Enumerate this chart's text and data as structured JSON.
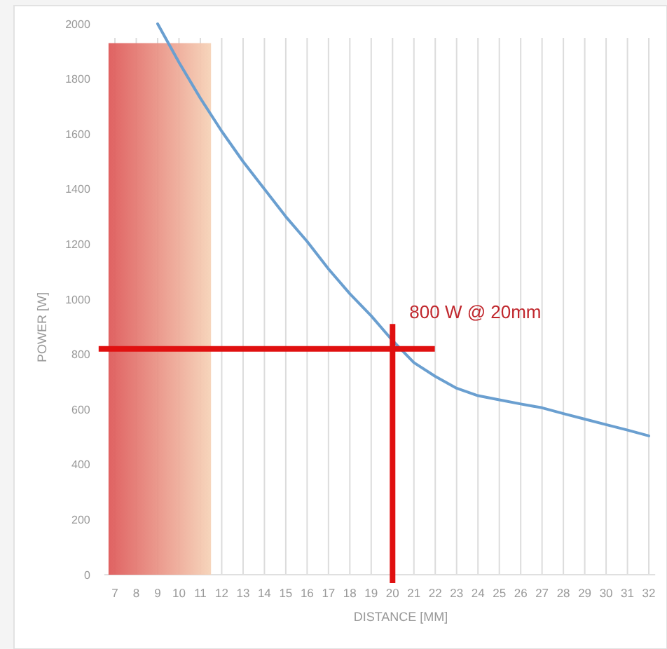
{
  "chart_data": {
    "type": "line",
    "xlabel": "DISTANCE [MM]",
    "ylabel": "POWER [W]",
    "x": [
      9,
      10,
      11,
      12,
      13,
      14,
      15,
      16,
      17,
      18,
      19,
      20,
      21,
      22,
      23,
      24,
      25,
      26,
      27,
      28,
      29,
      30,
      31,
      32
    ],
    "series": [
      {
        "color": "#6a9fd0",
        "values": [
          2000,
          1860,
          1730,
          1610,
          1500,
          1400,
          1300,
          1210,
          1110,
          1020,
          940,
          850,
          770,
          720,
          677,
          650,
          635,
          620,
          606,
          585,
          565,
          545,
          525,
          504
        ]
      }
    ],
    "xlim": [
      6.5,
      32.3
    ],
    "xticks": [
      7,
      8,
      9,
      10,
      11,
      12,
      13,
      14,
      15,
      16,
      17,
      18,
      19,
      20,
      21,
      22,
      23,
      24,
      25,
      26,
      27,
      28,
      29,
      30,
      31,
      32
    ],
    "ylim": [
      0,
      2000
    ],
    "yticks": [
      0,
      200,
      400,
      600,
      800,
      1000,
      1200,
      1400,
      1600,
      1800,
      2000
    ],
    "grid": "x",
    "marker": "none",
    "line_style": "solid",
    "bands": [
      {
        "axis": "x",
        "from": 6.7,
        "to": 11.5,
        "color": "#de5a5a"
      }
    ],
    "ref_lines": [
      {
        "axis": "y",
        "value": 820,
        "color": "#e01010"
      },
      {
        "axis": "x",
        "value": 20,
        "color": "#e01010"
      }
    ],
    "annotations": [
      {
        "text": "800 W @ 20mm",
        "x": 20,
        "y": 820
      }
    ]
  }
}
